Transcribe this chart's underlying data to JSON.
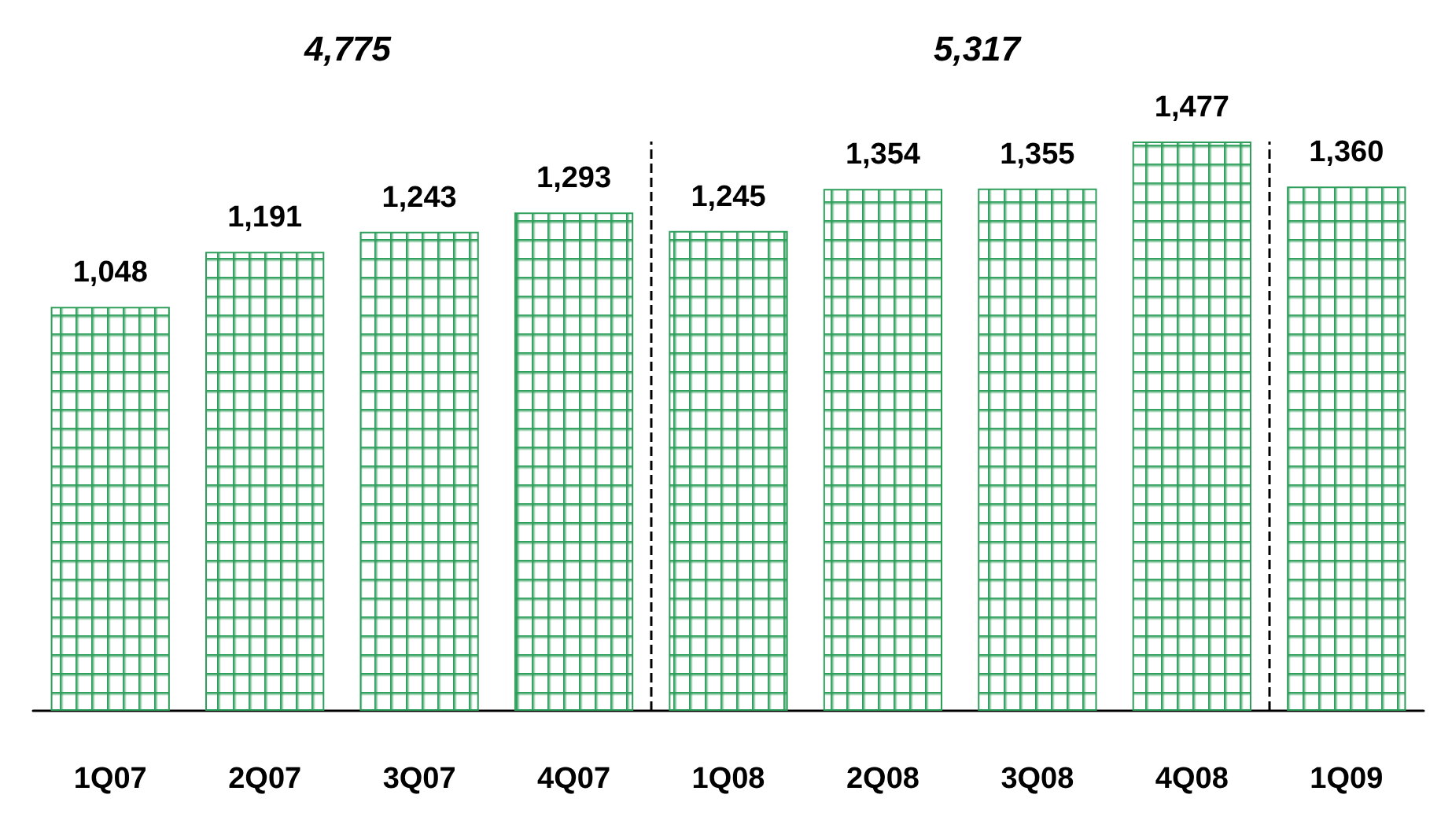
{
  "chart_data": {
    "type": "bar",
    "categories": [
      "1Q07",
      "2Q07",
      "3Q07",
      "4Q07",
      "1Q08",
      "2Q08",
      "3Q08",
      "4Q08",
      "1Q09"
    ],
    "values": [
      1048,
      1191,
      1243,
      1293,
      1245,
      1354,
      1355,
      1477,
      1360
    ],
    "value_labels": [
      "1,048",
      "1,191",
      "1,243",
      "1,293",
      "1,245",
      "1,354",
      "1,355",
      "1,477",
      "1,360"
    ],
    "color": "#2e9e5b",
    "grid": false,
    "tick_labels": "x",
    "annotations": [
      "4,775",
      "5,317"
    ]
  }
}
